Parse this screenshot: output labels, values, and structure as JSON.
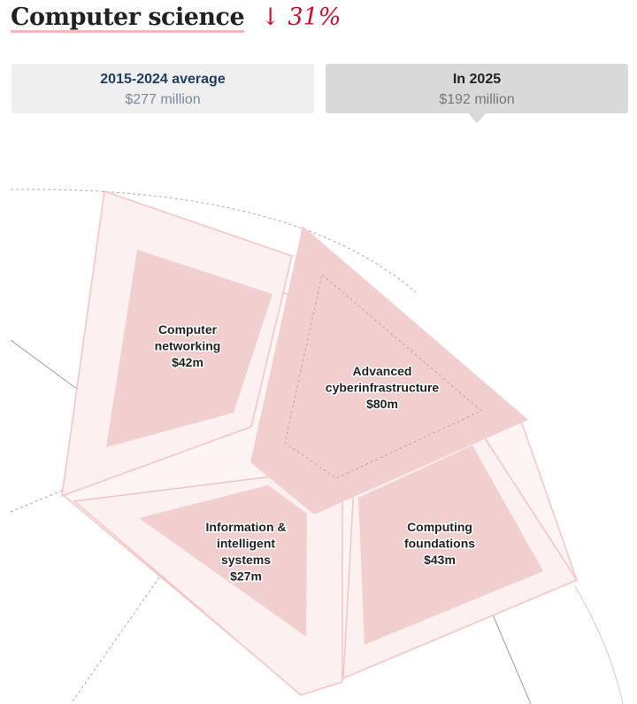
{
  "header": {
    "title": "Computer science",
    "change": "↓ 31%"
  },
  "tabs": [
    {
      "label": "2015-2024 average",
      "value": "$277 million"
    },
    {
      "label": "In 2025",
      "value": "$192 million"
    }
  ],
  "chart_data": {
    "type": "treemap",
    "unit": "$m",
    "categories": [
      "Computer networking",
      "Advanced cyberinfrastructure",
      "Information & intelligent systems",
      "Computing foundations"
    ],
    "values": [
      42,
      80,
      27,
      43
    ],
    "label_lines": [
      [
        "Computer",
        "networking",
        "$42m"
      ],
      [
        "Advanced",
        "cyberinfrastructure",
        "$80m"
      ],
      [
        "Information &",
        "intelligent",
        "systems",
        "$27m"
      ],
      [
        "Computing",
        "foundations",
        "$43m"
      ]
    ],
    "total_2025": 192,
    "average_2015_2024": 277,
    "colors": {
      "fill": "#f2cfcf",
      "outline_fill": "#fbeeee",
      "outline_stroke": "#f2c4c4",
      "title_change": "#c8102e"
    }
  }
}
